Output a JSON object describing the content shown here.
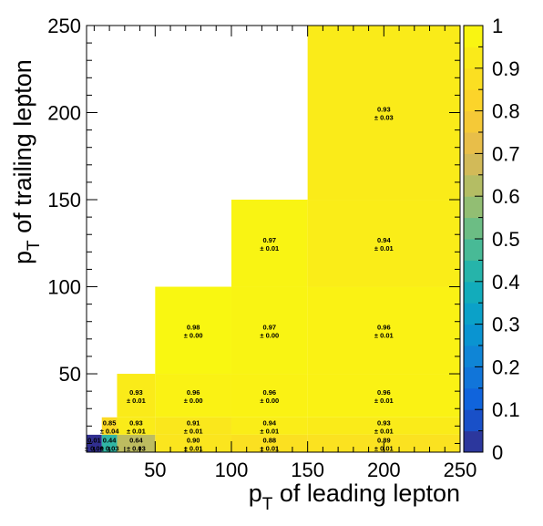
{
  "chart_data": {
    "type": "heatmap",
    "title": "",
    "xlabel": {
      "main": "p",
      "sub": "T",
      "rest": " of leading lepton"
    },
    "ylabel": {
      "main": "p",
      "sub": "T",
      "rest": " of trailing lepton"
    },
    "xlim": [
      5,
      250
    ],
    "ylim": [
      5,
      250
    ],
    "x_ticks": [
      "50",
      "100",
      "150",
      "200",
      "250"
    ],
    "y_ticks": [
      "50",
      "100",
      "150",
      "200",
      "250"
    ],
    "x_edges": [
      5,
      15,
      25,
      50,
      100,
      150,
      250
    ],
    "y_edges": [
      5,
      15,
      25,
      50,
      100,
      150,
      250
    ],
    "colorbar": {
      "range": [
        0,
        1
      ],
      "ticks": [
        "0",
        "0.1",
        "0.2",
        "0.3",
        "0.4",
        "0.5",
        "0.6",
        "0.7",
        "0.8",
        "0.9",
        "1"
      ]
    },
    "cells": [
      {
        "xbin": 0,
        "ybin": 0,
        "value": 0.01,
        "label": "0.01",
        "error": "± 0.00"
      },
      {
        "xbin": 1,
        "ybin": 0,
        "value": 0.44,
        "label": "0.44",
        "error": "± 0.03"
      },
      {
        "xbin": 2,
        "ybin": 0,
        "value": 0.64,
        "label": "0.64",
        "error": "± 0.03"
      },
      {
        "xbin": 3,
        "ybin": 0,
        "value": 0.9,
        "label": "0.90",
        "error": "± 0.01"
      },
      {
        "xbin": 4,
        "ybin": 0,
        "value": 0.88,
        "label": "0.88",
        "error": "± 0.01"
      },
      {
        "xbin": 5,
        "ybin": 0,
        "value": 0.89,
        "label": "0.89",
        "error": "± 0.01"
      },
      {
        "xbin": 1,
        "ybin": 1,
        "value": 0.85,
        "label": "0.85",
        "error": "± 0.04"
      },
      {
        "xbin": 2,
        "ybin": 1,
        "value": 0.93,
        "label": "0.93",
        "error": "± 0.01"
      },
      {
        "xbin": 3,
        "ybin": 1,
        "value": 0.91,
        "label": "0.91",
        "error": "± 0.01"
      },
      {
        "xbin": 4,
        "ybin": 1,
        "value": 0.94,
        "label": "0.94",
        "error": "± 0.01"
      },
      {
        "xbin": 5,
        "ybin": 1,
        "value": 0.93,
        "label": "0.93",
        "error": "± 0.01"
      },
      {
        "xbin": 2,
        "ybin": 2,
        "value": 0.93,
        "label": "0.93",
        "error": "± 0.01"
      },
      {
        "xbin": 3,
        "ybin": 2,
        "value": 0.96,
        "label": "0.96",
        "error": "± 0.00"
      },
      {
        "xbin": 4,
        "ybin": 2,
        "value": 0.96,
        "label": "0.96",
        "error": "± 0.00"
      },
      {
        "xbin": 5,
        "ybin": 2,
        "value": 0.96,
        "label": "0.96",
        "error": "± 0.01"
      },
      {
        "xbin": 3,
        "ybin": 3,
        "value": 0.98,
        "label": "0.98",
        "error": "± 0.00"
      },
      {
        "xbin": 4,
        "ybin": 3,
        "value": 0.97,
        "label": "0.97",
        "error": "± 0.00"
      },
      {
        "xbin": 5,
        "ybin": 3,
        "value": 0.96,
        "label": "0.96",
        "error": "± 0.01"
      },
      {
        "xbin": 4,
        "ybin": 4,
        "value": 0.97,
        "label": "0.97",
        "error": "± 0.01"
      },
      {
        "xbin": 5,
        "ybin": 4,
        "value": 0.94,
        "label": "0.94",
        "error": "± 0.01"
      },
      {
        "xbin": 5,
        "ybin": 5,
        "value": 0.93,
        "label": "0.93",
        "error": "± 0.03"
      }
    ]
  }
}
